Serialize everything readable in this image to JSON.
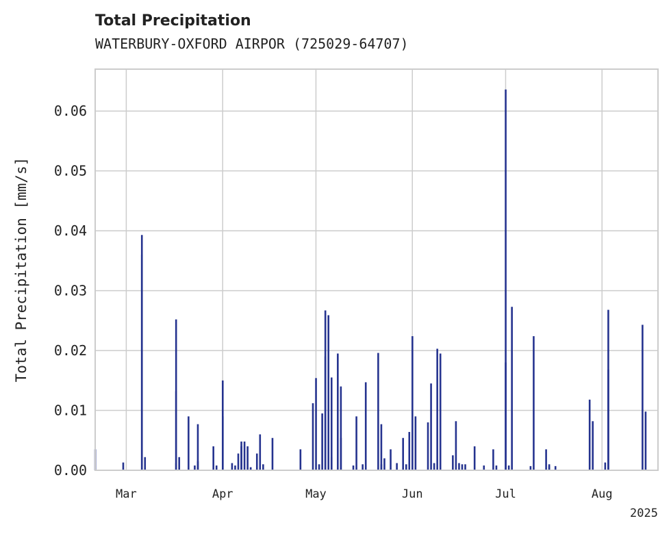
{
  "chart_data": {
    "type": "bar",
    "title": "Total Precipitation",
    "subtitle": "WATERBURY-OXFORD AIRPOR (725029-64707)",
    "ylabel": "Total Precipitation [mm/s]",
    "ylim": [
      0,
      0.067
    ],
    "yticks": [
      "0.00",
      "0.01",
      "0.02",
      "0.03",
      "0.04",
      "0.05",
      "0.06"
    ],
    "xticks": [
      "Mar",
      "Apr",
      "May",
      "Jun",
      "Jul",
      "Aug"
    ],
    "xyear": "2025",
    "x_range": [
      "2025-02-19",
      "2025-08-19"
    ],
    "grid": true,
    "bar_color": "#25338f",
    "series": [
      {
        "x": [
          "2025-02-19",
          "2025-02-28",
          "2025-03-06",
          "2025-03-06",
          "2025-03-07",
          "2025-03-17",
          "2025-03-17",
          "2025-03-17",
          "2025-03-18",
          "2025-03-21",
          "2025-03-23",
          "2025-03-24",
          "2025-03-24",
          "2025-03-29",
          "2025-03-30",
          "2025-04-01",
          "2025-04-01",
          "2025-04-04",
          "2025-04-05",
          "2025-04-06",
          "2025-04-07",
          "2025-04-07",
          "2025-04-08",
          "2025-04-09",
          "2025-04-10",
          "2025-04-10",
          "2025-04-12",
          "2025-04-13",
          "2025-04-14",
          "2025-04-17",
          "2025-04-26",
          "2025-04-30",
          "2025-05-01",
          "2025-05-02",
          "2025-05-03",
          "2025-05-04",
          "2025-05-04",
          "2025-05-05",
          "2025-05-06",
          "2025-05-06",
          "2025-05-08",
          "2025-05-09",
          "2025-05-09",
          "2025-05-13",
          "2025-05-14",
          "2025-05-16",
          "2025-05-17",
          "2025-05-21",
          "2025-05-22",
          "2025-05-22",
          "2025-05-23",
          "2025-05-25",
          "2025-05-27",
          "2025-05-29",
          "2025-05-30",
          "2025-05-31",
          "2025-06-01",
          "2025-06-02",
          "2025-06-06",
          "2025-06-07",
          "2025-06-08",
          "2025-06-09",
          "2025-06-10",
          "2025-06-14",
          "2025-06-15",
          "2025-06-16",
          "2025-06-17",
          "2025-06-18",
          "2025-06-21",
          "2025-06-24",
          "2025-06-27",
          "2025-06-28",
          "2025-07-01",
          "2025-07-01",
          "2025-07-02",
          "2025-07-03",
          "2025-07-09",
          "2025-07-10",
          "2025-07-14",
          "2025-07-15",
          "2025-07-15",
          "2025-07-17",
          "2025-07-28",
          "2025-07-29",
          "2025-08-02",
          "2025-08-03",
          "2025-08-03",
          "2025-08-14",
          "2025-08-15"
        ],
        "values": [
          0.0035,
          0.0013,
          0.0393,
          0.036,
          0.0022,
          0.0012,
          0.0252,
          0.0132,
          0.0022,
          0.009,
          0.0008,
          0.0015,
          0.0077,
          0.004,
          0.0008,
          0.015,
          0.009,
          0.0012,
          0.0008,
          0.0028,
          0.0048,
          0.004,
          0.0048,
          0.004,
          0.0005,
          0.0005,
          0.0028,
          0.006,
          0.001,
          0.0054,
          0.0035,
          0.0112,
          0.0154,
          0.001,
          0.0095,
          0.0267,
          0.019,
          0.0259,
          0.0155,
          0.0022,
          0.0195,
          0.014,
          0.0054,
          0.0008,
          0.009,
          0.001,
          0.0147,
          0.0196,
          0.001,
          0.0077,
          0.002,
          0.0035,
          0.0012,
          0.0054,
          0.001,
          0.0064,
          0.0224,
          0.009,
          0.008,
          0.0145,
          0.0012,
          0.0203,
          0.0195,
          0.0025,
          0.0082,
          0.0012,
          0.001,
          0.001,
          0.004,
          0.0008,
          0.0035,
          0.0008,
          0.0636,
          0.018,
          0.0008,
          0.0273,
          0.0007,
          0.0224,
          0.0035,
          0.001,
          0.0007,
          0.0007,
          0.0118,
          0.0082,
          0.0013,
          0.0268,
          0.0168,
          0.0243,
          0.0098
        ]
      }
    ]
  }
}
